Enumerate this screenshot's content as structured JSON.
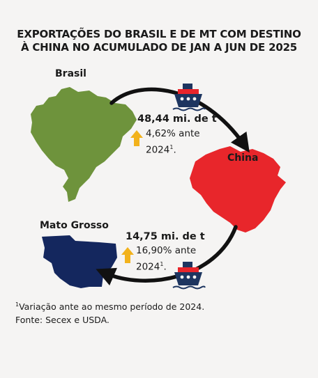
{
  "title": {
    "line1": "EXPORTAÇÕES DO BRASIL E DE MT COM DESTINO",
    "line2": "À CHINA NO ACUMULADO DE JAN A JUN DE 2025"
  },
  "regions": {
    "brasil": "Brasil",
    "china": "China",
    "mato_grosso": "Mato Grosso"
  },
  "flows": {
    "brasil": {
      "amount": "48,44 mi. de t",
      "variation": "4,62% ante",
      "base_year": "2024",
      "footnote_mark": "1",
      "after": "."
    },
    "mato_grosso": {
      "amount": "14,75 mi. de t",
      "variation": "16,90% ante",
      "base_year": "2024",
      "footnote_mark": "1",
      "after": "."
    }
  },
  "footer": {
    "mark": "1",
    "note": "Variação ante ao mesmo período de 2024.",
    "source": "Fonte: Secex e USDA."
  },
  "colors": {
    "brasil": "#6e933c",
    "china": "#e8262b",
    "mato_grosso": "#14275e",
    "arrow_up": "#f2b21c",
    "ship_hull": "#1d3560"
  }
}
